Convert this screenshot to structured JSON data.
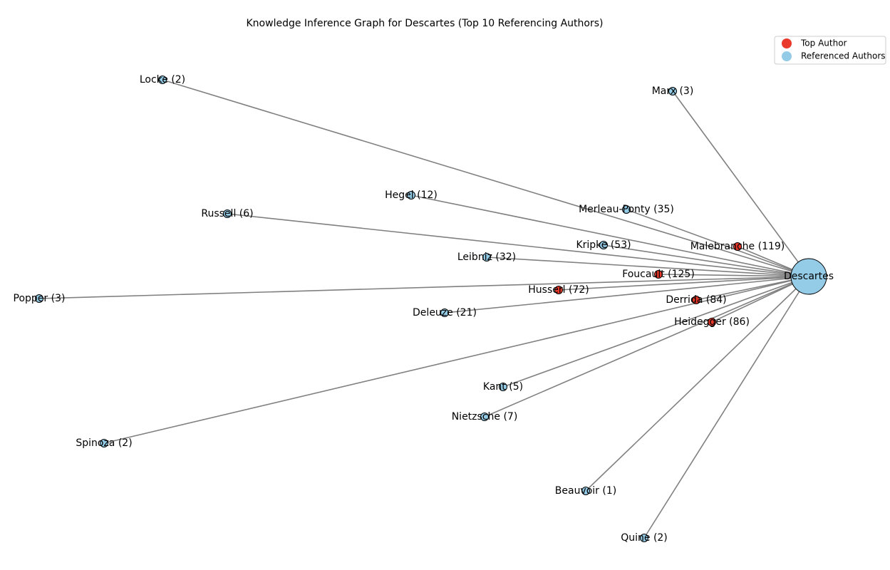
{
  "title": "Knowledge Inference Graph for Descartes (Top 10 Referencing Authors)",
  "legend": [
    {
      "label": "Top Author",
      "color": "#e8392a"
    },
    {
      "label": "Referenced Authors",
      "color": "#94cbe6"
    }
  ],
  "center": {
    "label": "Descartes",
    "color": "#94cbe6"
  },
  "nodes": [
    {
      "label": "Locke (2)",
      "color": "#94cbe6"
    },
    {
      "label": "Marx (3)",
      "color": "#94cbe6"
    },
    {
      "label": "Hegel (12)",
      "color": "#94cbe6"
    },
    {
      "label": "Russell (6)",
      "color": "#94cbe6"
    },
    {
      "label": "Merleau-Ponty (35)",
      "color": "#94cbe6"
    },
    {
      "label": "Kripke (53)",
      "color": "#94cbe6"
    },
    {
      "label": "Malebranche (119)",
      "color": "#e8392a"
    },
    {
      "label": "Leibniz (32)",
      "color": "#94cbe6"
    },
    {
      "label": "Foucault (125)",
      "color": "#e8392a"
    },
    {
      "label": "Popper (3)",
      "color": "#94cbe6"
    },
    {
      "label": "Husserl (72)",
      "color": "#e8392a"
    },
    {
      "label": "Derrida (84)",
      "color": "#e8392a"
    },
    {
      "label": "Deleuze (21)",
      "color": "#94cbe6"
    },
    {
      "label": "Heidegger (86)",
      "color": "#e8392a"
    },
    {
      "label": "Kant (5)",
      "color": "#94cbe6"
    },
    {
      "label": "Nietzsche (7)",
      "color": "#94cbe6"
    },
    {
      "label": "Spinoza (2)",
      "color": "#94cbe6"
    },
    {
      "label": "Beauvoir (1)",
      "color": "#94cbe6"
    },
    {
      "label": "Quine (2)",
      "color": "#94cbe6"
    }
  ]
}
